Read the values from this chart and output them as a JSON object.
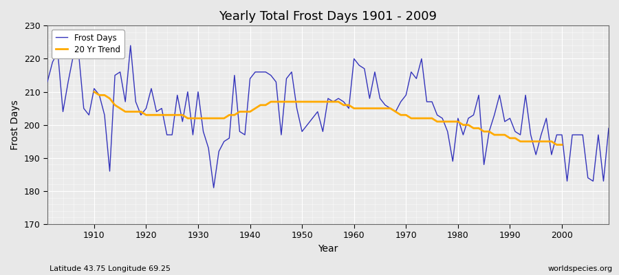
{
  "title": "Yearly Total Frost Days 1901 - 2009",
  "xlabel": "Year",
  "ylabel": "Frost Days",
  "footnote_left": "Latitude 43.75 Longitude 69.25",
  "footnote_right": "worldspecies.org",
  "legend_labels": [
    "Frost Days",
    "20 Yr Trend"
  ],
  "line_color": "#3333bb",
  "trend_color": "#ffaa00",
  "fig_bg": "#e8e8e8",
  "plot_bg": "#ebebeb",
  "ylim": [
    170,
    230
  ],
  "xlim": [
    1901,
    2009
  ],
  "yticks": [
    170,
    180,
    190,
    200,
    210,
    220,
    230
  ],
  "xticks": [
    1910,
    1920,
    1930,
    1940,
    1950,
    1960,
    1970,
    1980,
    1990,
    2000
  ],
  "years": [
    1901,
    1902,
    1903,
    1904,
    1905,
    1906,
    1907,
    1908,
    1909,
    1910,
    1911,
    1912,
    1913,
    1914,
    1915,
    1916,
    1917,
    1918,
    1919,
    1920,
    1921,
    1922,
    1923,
    1924,
    1925,
    1926,
    1927,
    1928,
    1929,
    1930,
    1931,
    1932,
    1933,
    1934,
    1935,
    1936,
    1937,
    1938,
    1939,
    1940,
    1941,
    1942,
    1943,
    1944,
    1945,
    1946,
    1947,
    1948,
    1949,
    1950,
    1951,
    1952,
    1953,
    1954,
    1955,
    1956,
    1957,
    1958,
    1959,
    1960,
    1961,
    1962,
    1963,
    1964,
    1965,
    1966,
    1967,
    1968,
    1969,
    1970,
    1971,
    1972,
    1973,
    1974,
    1975,
    1976,
    1977,
    1978,
    1979,
    1980,
    1981,
    1982,
    1983,
    1984,
    1985,
    1986,
    1987,
    1988,
    1989,
    1990,
    1991,
    1992,
    1993,
    1994,
    1995,
    1996,
    1997,
    1998,
    1999,
    2000,
    2001,
    2002,
    2003,
    2004,
    2005,
    2006,
    2007,
    2008,
    2009
  ],
  "frost_days": [
    213,
    219,
    222,
    204,
    213,
    221,
    222,
    205,
    203,
    211,
    209,
    203,
    186,
    215,
    216,
    207,
    224,
    207,
    203,
    205,
    211,
    204,
    205,
    197,
    197,
    209,
    201,
    210,
    197,
    210,
    198,
    193,
    181,
    192,
    195,
    196,
    215,
    198,
    197,
    214,
    216,
    216,
    216,
    215,
    213,
    197,
    214,
    216,
    205,
    198,
    200,
    202,
    204,
    198,
    208,
    207,
    208,
    207,
    205,
    220,
    218,
    217,
    208,
    216,
    208,
    206,
    205,
    204,
    207,
    209,
    216,
    214,
    220,
    207,
    207,
    203,
    202,
    198,
    189,
    202,
    197,
    202,
    203,
    209,
    188,
    198,
    203,
    209,
    201,
    202,
    198,
    197,
    209,
    197,
    191,
    197,
    202,
    191,
    197,
    197,
    183,
    197,
    197,
    197,
    184,
    183,
    197,
    183,
    199
  ],
  "trend_years": [
    1910,
    1911,
    1912,
    1913,
    1914,
    1915,
    1916,
    1917,
    1918,
    1919,
    1920,
    1921,
    1922,
    1923,
    1924,
    1925,
    1926,
    1927,
    1928,
    1929,
    1930,
    1931,
    1932,
    1933,
    1934,
    1935,
    1936,
    1937,
    1938,
    1939,
    1940,
    1941,
    1942,
    1943,
    1944,
    1945,
    1946,
    1947,
    1948,
    1949,
    1950,
    1951,
    1952,
    1953,
    1954,
    1955,
    1956,
    1957,
    1958,
    1959,
    1960,
    1961,
    1962,
    1963,
    1964,
    1965,
    1966,
    1967,
    1968,
    1969,
    1970,
    1971,
    1972,
    1973,
    1974,
    1975,
    1976,
    1977,
    1978,
    1979,
    1980,
    1981,
    1982,
    1983,
    1984,
    1985,
    1986,
    1987,
    1988,
    1989,
    1990,
    1991,
    1992,
    1993,
    1994,
    1995,
    1996,
    1997,
    1998,
    1999,
    2000
  ],
  "trend_values": [
    210,
    209,
    209,
    208,
    206,
    205,
    204,
    204,
    204,
    204,
    203,
    203,
    203,
    203,
    203,
    203,
    203,
    203,
    202,
    202,
    202,
    202,
    202,
    202,
    202,
    202,
    203,
    203,
    204,
    204,
    204,
    205,
    206,
    206,
    207,
    207,
    207,
    207,
    207,
    207,
    207,
    207,
    207,
    207,
    207,
    207,
    207,
    207,
    206,
    206,
    205,
    205,
    205,
    205,
    205,
    205,
    205,
    205,
    204,
    203,
    203,
    202,
    202,
    202,
    202,
    202,
    201,
    201,
    201,
    201,
    201,
    200,
    200,
    199,
    199,
    198,
    198,
    197,
    197,
    197,
    196,
    196,
    195,
    195,
    195,
    195,
    195,
    195,
    195,
    194,
    194
  ]
}
